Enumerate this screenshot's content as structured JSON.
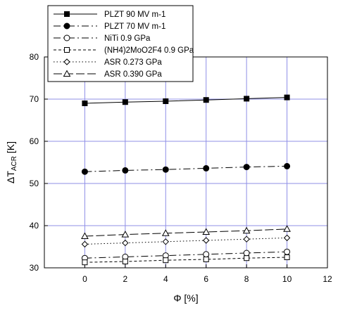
{
  "chart_data": {
    "type": "line",
    "xlabel": "Φ [%]",
    "ylabel": "ΔTACR [K]",
    "ylabel_parts": {
      "prefix": "ΔT",
      "subscript": "ACR",
      "suffix": " [K]"
    },
    "xlim": [
      -2,
      12
    ],
    "ylim": [
      30,
      80
    ],
    "x_ticks": [
      "0",
      "2",
      "4",
      "6",
      "8",
      "10",
      "12"
    ],
    "y_ticks": [
      "30",
      "40",
      "50",
      "60",
      "70",
      "80"
    ],
    "grid": true,
    "legend_position": "top-left",
    "x": [
      0,
      2,
      4,
      6,
      8,
      10
    ],
    "series": [
      {
        "name": "PLZT 90 MV m-1",
        "marker": "square-filled",
        "line": "solid",
        "values": [
          69.0,
          69.3,
          69.5,
          69.8,
          70.1,
          70.4
        ]
      },
      {
        "name": "PLZT 70 MV m-1",
        "marker": "circle-filled",
        "line": "dashdot",
        "values": [
          52.8,
          53.1,
          53.3,
          53.6,
          53.9,
          54.1
        ]
      },
      {
        "name": "NiTi 0.9 GPa",
        "marker": "circle-open",
        "line": "dashdot",
        "values": [
          32.3,
          32.6,
          32.9,
          33.2,
          33.5,
          33.8
        ]
      },
      {
        "name": "(NH4)2MoO2F4 0.9 GPa",
        "marker": "square-open",
        "line": "dashed",
        "values": [
          31.3,
          31.5,
          31.8,
          32.0,
          32.3,
          32.5
        ]
      },
      {
        "name": "ASR 0.273 GPa",
        "marker": "diamond-open",
        "line": "dotted",
        "values": [
          35.6,
          35.9,
          36.2,
          36.5,
          36.8,
          37.1
        ]
      },
      {
        "name": "ASR 0.390 GPa",
        "marker": "triangle-open",
        "line": "longdash",
        "values": [
          37.5,
          37.9,
          38.2,
          38.5,
          38.8,
          39.2
        ]
      }
    ]
  }
}
